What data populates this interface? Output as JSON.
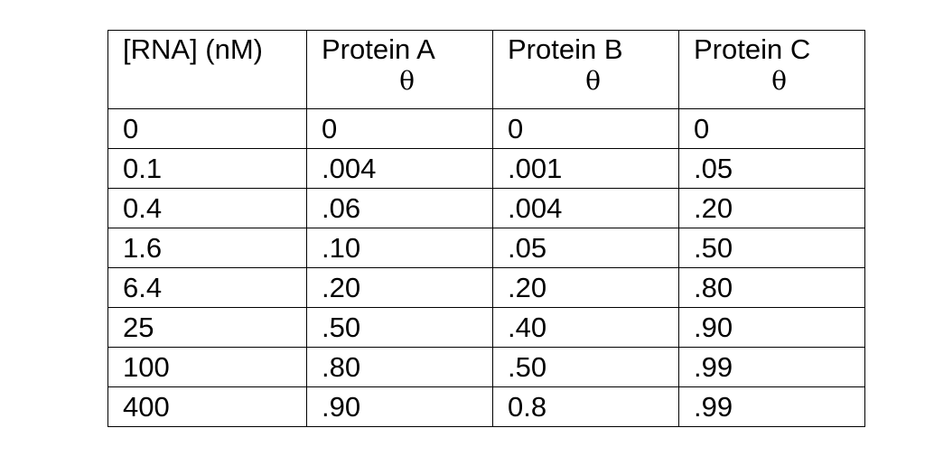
{
  "table": {
    "headers": [
      {
        "title": "[RNA] (nM)",
        "symbol": ""
      },
      {
        "title": "Protein A",
        "symbol": "θ"
      },
      {
        "title": "Protein B",
        "symbol": "θ"
      },
      {
        "title": "Protein C",
        "symbol": "θ"
      }
    ],
    "rows": [
      [
        "0",
        "0",
        "0",
        "0"
      ],
      [
        "0.1",
        ".004",
        ".001",
        ".05"
      ],
      [
        "0.4",
        ".06",
        ".004",
        ".20"
      ],
      [
        "1.6",
        ".10",
        ".05",
        ".50"
      ],
      [
        "6.4",
        ".20",
        ".20",
        ".80"
      ],
      [
        "25",
        ".50",
        ".40",
        ".90"
      ],
      [
        "100",
        ".80",
        ".50",
        ".99"
      ],
      [
        "400",
        ".90",
        "0.8",
        ".99"
      ]
    ]
  }
}
